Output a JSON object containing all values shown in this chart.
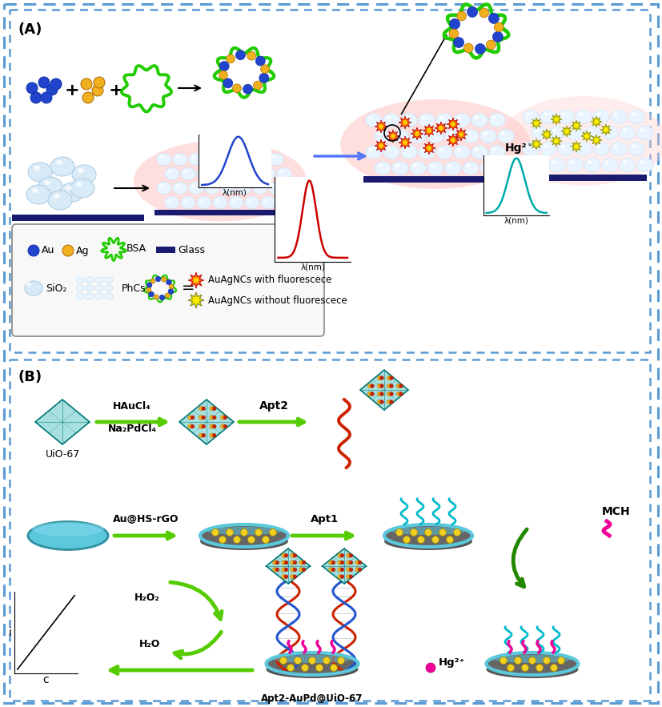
{
  "fig_width": 8.27,
  "fig_height": 8.83,
  "bg_color": "#ffffff",
  "colors": {
    "border_blue": "#5b9bd5",
    "green_bsa": "#22cc00",
    "green_arrow": "#55cc00",
    "dark_green": "#228800",
    "au_blue": "#2244cc",
    "ag_yellow": "#f0b020",
    "glass_bar": "#1a1a6e",
    "sphere_face": "#ddeeff",
    "sphere_edge": "#aabbcc",
    "phcs_face": "#e8f4ff",
    "phcs_edge": "#c0d8ee",
    "pink_glow": "#ffaaaa",
    "teal_electrode": "#5bc8dc",
    "dark_teal": "#3090a0",
    "au_dot": "#f0d020",
    "cyan_strand": "#00bbcc",
    "magenta": "#ee0099",
    "red_helix": "#cc2200",
    "blue_helix": "#2255cc",
    "diamond_face": "#a8e0e0",
    "diamond_edge": "#007777",
    "star_red": "#ff3300",
    "star_yellow": "#ffcc00",
    "star_dark": "#cccc00"
  },
  "panel_A_label": "(A)",
  "panel_B_label": "(B)",
  "lambda_nm": "λ(nm)",
  "hg2p": "Hg²⁺",
  "legend_row1": [
    "Au",
    "Ag",
    "BSA",
    "Glass"
  ],
  "legend_row2_a": "SiO₂",
  "legend_row2_b": "PhCs",
  "legend_fluo1": "AuAgNCs with fluorescece",
  "legend_fluo2": "AuAgNCs without fluorescece",
  "B_uio67": "UiO-67",
  "B_haucl4": "HAuCl₄",
  "B_na2pdcl4": "Na₂PdCl₄",
  "B_apt2": "Apt2",
  "B_au_hs_rgo": "Au@HS-rGO",
  "B_apt1": "Apt1",
  "B_mch": "MCH",
  "B_h2o2": "H₂O₂",
  "B_h2o": "H₂O",
  "B_apt2_aupd": "Apt2-AuPd@UiO-67",
  "B_i": "i",
  "B_c": "c"
}
